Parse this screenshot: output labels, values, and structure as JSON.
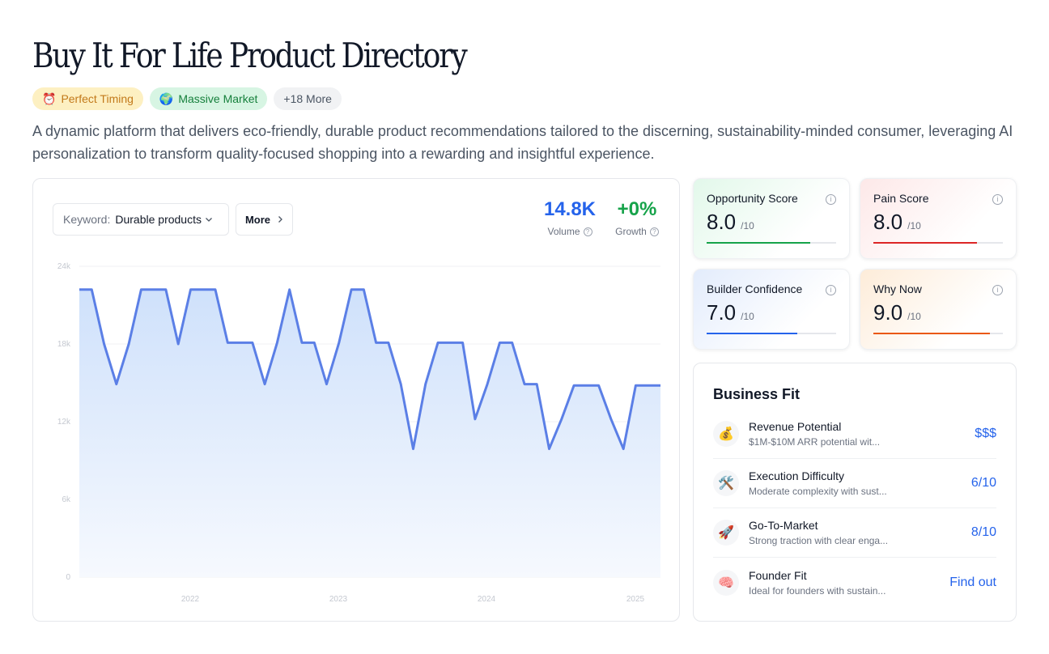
{
  "page": {
    "title": "Buy It For Life Product Directory",
    "description": "A dynamic platform that delivers eco-friendly, durable product recommendations tailored to the discerning, sustainability-minded consumer, leveraging AI personalization to transform quality-focused shopping into a rewarding and insightful experience."
  },
  "tags": [
    {
      "emoji": "⏰",
      "label": "Perfect Timing"
    },
    {
      "emoji": "🌍",
      "label": "Massive Market"
    },
    {
      "label": "+18 More"
    }
  ],
  "keyword": {
    "label": "Keyword:",
    "value": "Durable products"
  },
  "more_button": {
    "label": "More"
  },
  "stats": {
    "volume": {
      "value": "14.8K",
      "label": "Volume"
    },
    "growth": {
      "value": "+0%",
      "label": "Growth"
    }
  },
  "chart_data": {
    "type": "area",
    "ylim": [
      0,
      24000
    ],
    "yticks": [
      "0",
      "6k",
      "12k",
      "18k",
      "24k"
    ],
    "xticks": [
      "2022",
      "2023",
      "2024",
      "2025"
    ],
    "series": [
      {
        "values": [
          22200,
          22200,
          18000,
          14900,
          18000,
          22200,
          22200,
          22200,
          18000,
          22200,
          22200,
          22200,
          18100,
          18100,
          18100,
          14900,
          18100,
          22200,
          18100,
          18100,
          14900,
          18100,
          22200,
          22200,
          18100,
          18100,
          14900,
          9900,
          14900,
          18100,
          18100,
          18100,
          12200,
          14900,
          18100,
          18100,
          14900,
          14900,
          9900,
          12200,
          14800,
          14800,
          14800,
          12200,
          9900,
          14800,
          14800,
          14800
        ]
      }
    ]
  },
  "scores": [
    {
      "key": "opp",
      "title": "Opportunity Score",
      "value": "8.0",
      "max": "/10",
      "color": "#16a34a",
      "level": 0.8
    },
    {
      "key": "pain",
      "title": "Pain Score",
      "value": "8.0",
      "max": "/10",
      "color": "#dc2626",
      "level": 0.8
    },
    {
      "key": "build",
      "title": "Builder Confidence",
      "value": "7.0",
      "max": "/10",
      "color": "#2563eb",
      "level": 0.7
    },
    {
      "key": "why",
      "title": "Why Now",
      "value": "9.0",
      "max": "/10",
      "color": "#ea580c",
      "level": 0.9
    }
  ],
  "business_fit": {
    "title": "Business Fit",
    "rows": [
      {
        "icon": "💰",
        "name": "Revenue Potential",
        "sub": "$1M-$10M ARR potential wit...",
        "value": "$$$"
      },
      {
        "icon": "🛠️",
        "name": "Execution Difficulty",
        "sub": "Moderate complexity with sust...",
        "value": "6/10"
      },
      {
        "icon": "🚀",
        "name": "Go-To-Market",
        "sub": "Strong traction with clear enga...",
        "value": "8/10"
      },
      {
        "icon": "🧠",
        "name": "Founder Fit",
        "sub": "Ideal for founders with sustain...",
        "value": "Find out"
      }
    ]
  }
}
